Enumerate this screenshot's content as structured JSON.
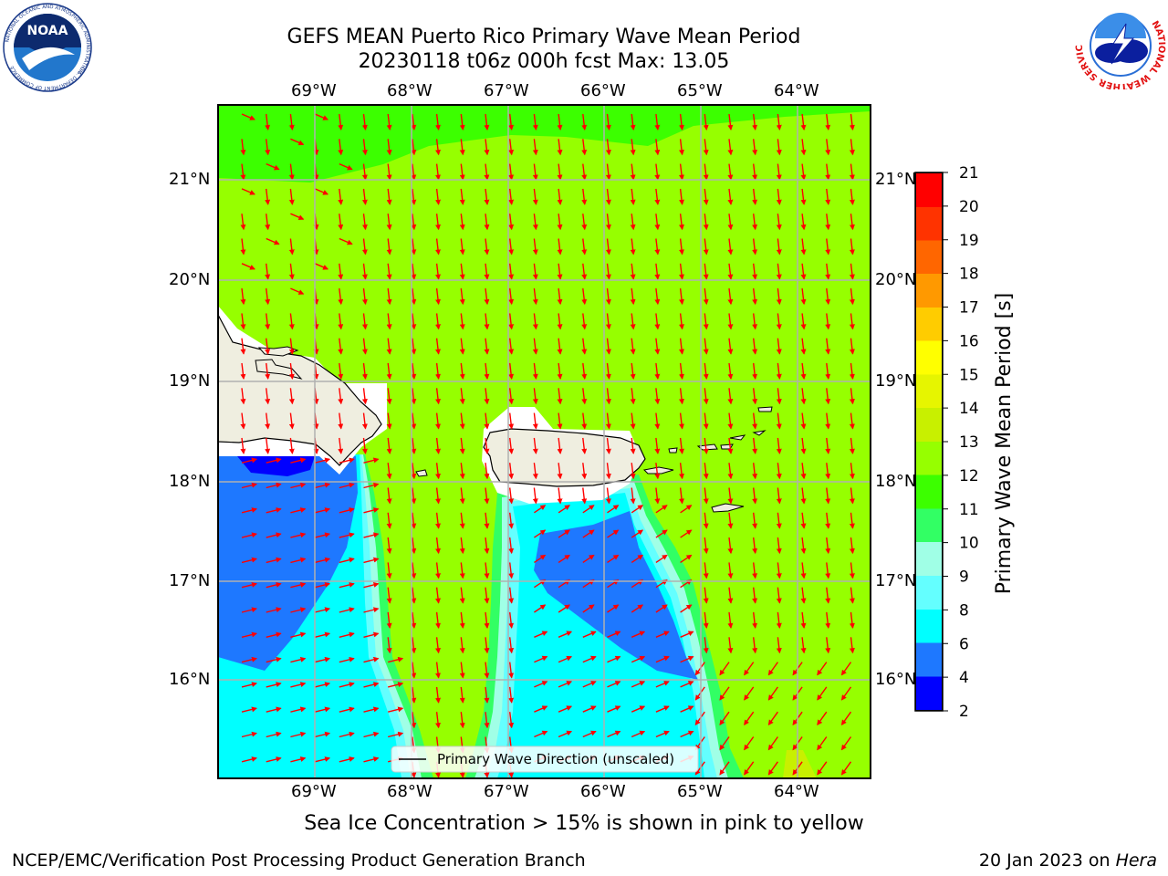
{
  "header": {
    "title_line1": "GEFS MEAN Puerto Rico Primary Wave Mean Period",
    "title_line2": "20230118 t06z 000h fcst   Max: 13.05"
  },
  "logos": {
    "left_text": "NOAA",
    "left_ring_text": "NATIONAL OCEANIC AND ATMOSPHERIC ADMINISTRATION",
    "left_ring_bottom": "U.S. DEPARTMENT OF COMMERCE",
    "right_ring_text": "NATIONAL WEATHER SERVICE"
  },
  "map": {
    "lon_labels": [
      "69°W",
      "68°W",
      "67°W",
      "66°W",
      "65°W",
      "64°W"
    ],
    "lat_labels": [
      "21°N",
      "20°N",
      "19°N",
      "18°N",
      "17°N",
      "16°N"
    ],
    "legend_label": "Primary Wave Direction (unscaled)"
  },
  "colorbar": {
    "label": "Primary Wave Mean Period [s]",
    "ticks": [
      "2",
      "4",
      "6",
      "8",
      "9",
      "10",
      "11",
      "12",
      "13",
      "14",
      "15",
      "16",
      "17",
      "18",
      "19",
      "20",
      "21"
    ],
    "colors": [
      "#0000ff",
      "#1e78ff",
      "#00ffff",
      "#64ffff",
      "#a0ffe6",
      "#32ff64",
      "#3cff00",
      "#96ff00",
      "#c8f000",
      "#e6f500",
      "#ffff00",
      "#ffcc00",
      "#ff9900",
      "#ff6600",
      "#ff3300",
      "#ff0000"
    ]
  },
  "notes": {
    "sea_ice": "Sea Ice Concentration > 15% is shown in pink to yellow",
    "org": "NCEP/EMC/Verification Post Processing Product Generation Branch",
    "date": "20 Jan 2023 on",
    "machine": "Hera"
  },
  "colors": {
    "arrow": "#ff0000",
    "land": "#efeee0",
    "ocean_main": "#96ff00"
  }
}
